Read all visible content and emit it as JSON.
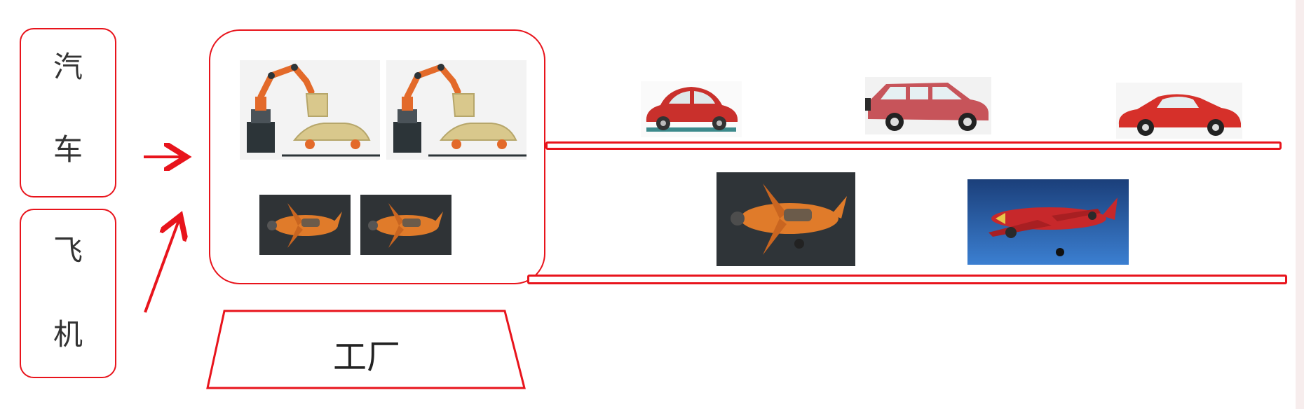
{
  "inputs": {
    "car_char_1": "汽",
    "car_char_2": "车",
    "plane_char_1": "飞",
    "plane_char_2": "机"
  },
  "factory_label": "工厂",
  "colors": {
    "accent": "#e8141c",
    "car_red": "#c9302c",
    "plane_orange": "#e07b2a"
  }
}
